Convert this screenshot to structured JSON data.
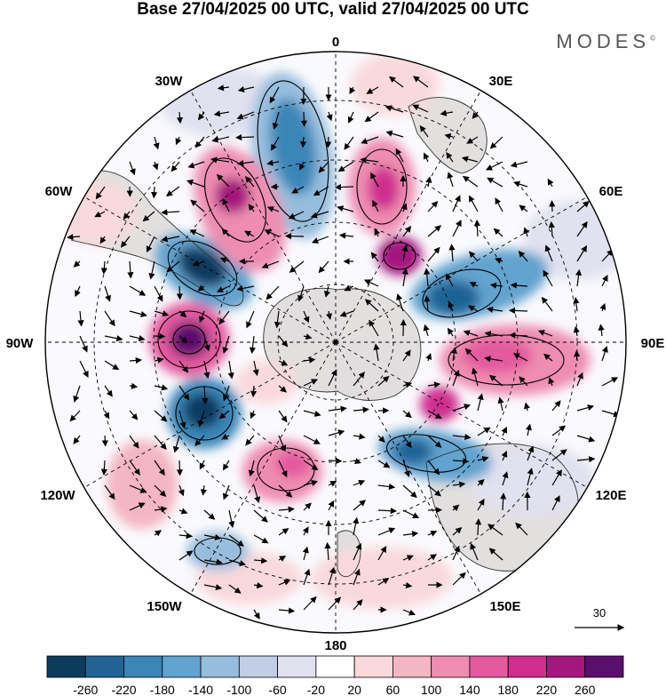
{
  "title": "Base 27/04/2025 00 UTC, valid 27/04/2025 00 UTC",
  "brand": "MODES",
  "brand_mark": "©",
  "longitude_labels": [
    "0",
    "30E",
    "60E",
    "90E",
    "120E",
    "150E",
    "180",
    "150W",
    "120W",
    "90W",
    "60W",
    "30W"
  ],
  "reference_vector_label": "30",
  "colorbar": {
    "colors": [
      "#0d3b5e",
      "#1f6495",
      "#3a86b8",
      "#62a3cf",
      "#97bddd",
      "#c2cde6",
      "#e1e1ef",
      "#ffffff",
      "#f9d9dc",
      "#f4b6c2",
      "#ee8db0",
      "#e35a9e",
      "#cf2e8f",
      "#a4177e",
      "#5b0f6c"
    ],
    "labels": [
      "-260",
      "-220",
      "-180",
      "-140",
      "-100",
      "-60",
      "-20",
      "20",
      "60",
      "100",
      "140",
      "180",
      "220",
      "260"
    ]
  }
}
